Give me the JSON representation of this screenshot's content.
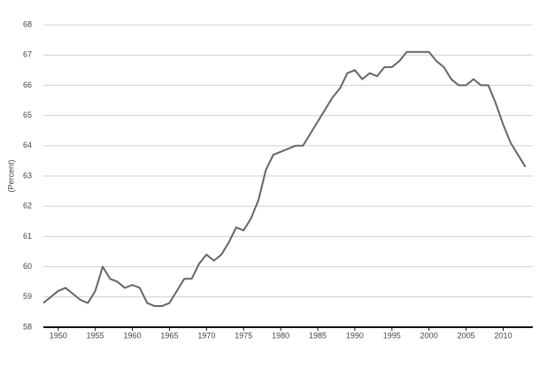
{
  "chart_data": {
    "type": "line",
    "y_label": "(Percent)",
    "x": [
      1948,
      1949,
      1950,
      1951,
      1952,
      1953,
      1954,
      1955,
      1956,
      1957,
      1958,
      1959,
      1960,
      1961,
      1962,
      1963,
      1964,
      1965,
      1966,
      1967,
      1968,
      1969,
      1970,
      1971,
      1972,
      1973,
      1974,
      1975,
      1976,
      1977,
      1978,
      1979,
      1980,
      1981,
      1982,
      1983,
      1984,
      1985,
      1986,
      1987,
      1988,
      1989,
      1990,
      1991,
      1992,
      1993,
      1994,
      1995,
      1996,
      1997,
      1998,
      1999,
      2000,
      2001,
      2002,
      2003,
      2004,
      2005,
      2006,
      2007,
      2008,
      2009,
      2010,
      2011,
      2012,
      2013
    ],
    "values": [
      58.8,
      59.0,
      59.2,
      59.3,
      59.1,
      58.9,
      58.8,
      59.2,
      60.0,
      59.6,
      59.5,
      59.3,
      59.4,
      59.3,
      58.8,
      58.7,
      58.7,
      58.8,
      59.2,
      59.6,
      59.6,
      60.1,
      60.4,
      60.2,
      60.4,
      60.8,
      61.3,
      61.2,
      61.6,
      62.2,
      63.2,
      63.7,
      63.8,
      63.9,
      64.0,
      64.0,
      64.4,
      64.8,
      65.2,
      65.6,
      65.9,
      66.4,
      66.5,
      66.2,
      66.4,
      66.3,
      66.6,
      66.6,
      66.8,
      67.1,
      67.1,
      67.1,
      67.1,
      66.8,
      66.6,
      66.2,
      66.0,
      66.0,
      66.2,
      66.0,
      66.0,
      65.4,
      64.7,
      64.1,
      63.7,
      63.3
    ],
    "color": "#666666",
    "xlim": [
      1948,
      2014
    ],
    "xticks": [
      1950,
      1955,
      1960,
      1965,
      1970,
      1975,
      1980,
      1985,
      1990,
      1995,
      2000,
      2005,
      2010
    ],
    "ylim": [
      58,
      68
    ],
    "yticks": [
      58,
      59,
      60,
      61,
      62,
      63,
      64,
      65,
      66,
      67,
      68
    ],
    "grid": true
  }
}
